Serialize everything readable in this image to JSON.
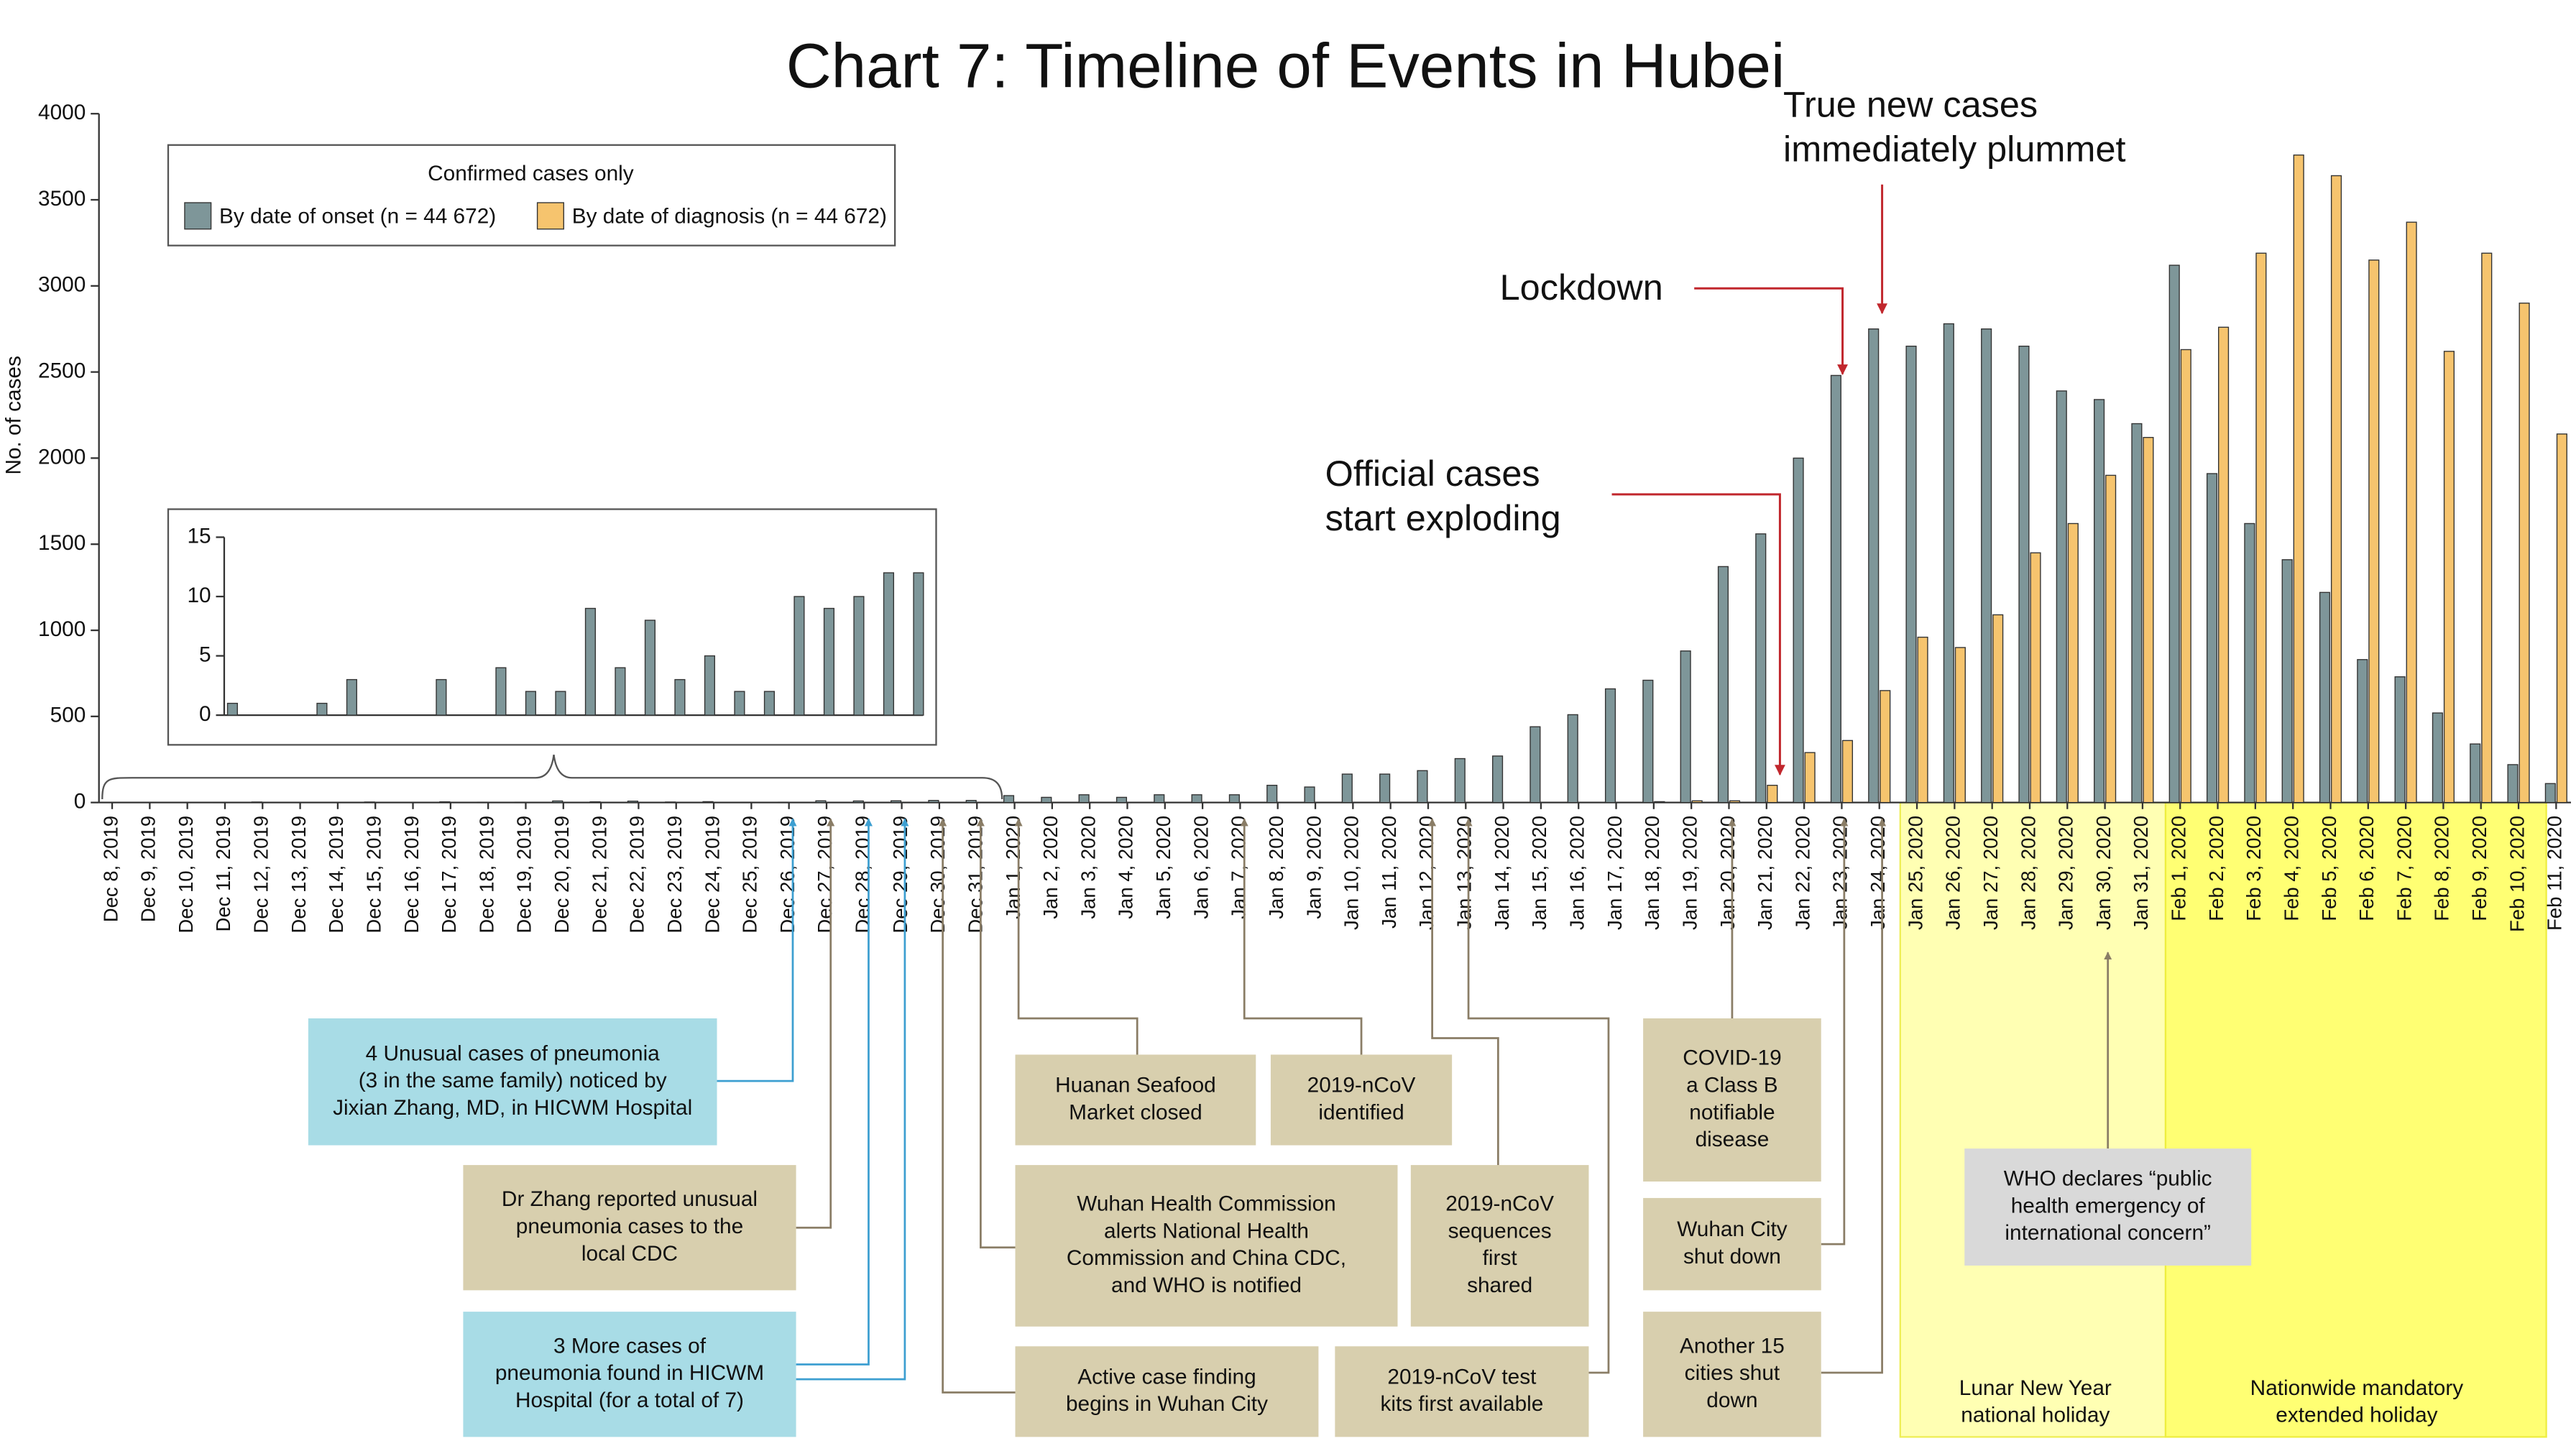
{
  "chart_data": [
    {
      "type": "bar",
      "title": "Chart 7: Timeline of Events in Hubei",
      "y_label": "No. of cases",
      "legend_title": "Confirmed cases only",
      "categories": [
        "Dec 8, 2019",
        "Dec 9, 2019",
        "Dec 10, 2019",
        "Dec 11, 2019",
        "Dec 12, 2019",
        "Dec 13, 2019",
        "Dec 14, 2019",
        "Dec 15, 2019",
        "Dec 16, 2019",
        "Dec 17, 2019",
        "Dec 18, 2019",
        "Dec 19, 2019",
        "Dec 20, 2019",
        "Dec 21, 2019",
        "Dec 22, 2019",
        "Dec 23, 2019",
        "Dec 24, 2019",
        "Dec 25, 2019",
        "Dec 26, 2019",
        "Dec 27, 2019",
        "Dec 28, 2019",
        "Dec 29, 2019",
        "Dec 30, 2019",
        "Dec 31, 2019",
        "Jan 1, 2020",
        "Jan 2, 2020",
        "Jan 3, 2020",
        "Jan 4, 2020",
        "Jan 5, 2020",
        "Jan 6, 2020",
        "Jan 7, 2020",
        "Jan 8, 2020",
        "Jan 9, 2020",
        "Jan 10, 2020",
        "Jan 11, 2020",
        "Jan 12, 2020",
        "Jan 13, 2020",
        "Jan 14, 2020",
        "Jan 15, 2020",
        "Jan 16, 2020",
        "Jan 17, 2020",
        "Jan 18, 2020",
        "Jan 19, 2020",
        "Jan 20, 2020",
        "Jan 21, 2020",
        "Jan 22, 2020",
        "Jan 23, 2020",
        "Jan 24, 2020",
        "Jan 25, 2020",
        "Jan 26, 2020",
        "Jan 27, 2020",
        "Jan 28, 2020",
        "Jan 29, 2020",
        "Jan 30, 2020",
        "Jan 31, 2020",
        "Feb 1, 2020",
        "Feb 2, 2020",
        "Feb 3, 2020",
        "Feb 4, 2020",
        "Feb 5, 2020",
        "Feb 6, 2020",
        "Feb 7, 2020",
        "Feb 8, 2020",
        "Feb 9, 2020",
        "Feb 10, 2020",
        "Feb 11, 2020"
      ],
      "series": [
        {
          "name": "By date of onset (n = 44 672)",
          "color": "#7e9699",
          "values": [
            1,
            0,
            0,
            1,
            3,
            0,
            0,
            3,
            0,
            4,
            2,
            2,
            9,
            4,
            8,
            3,
            5,
            2,
            2,
            10,
            9,
            10,
            12,
            12,
            40,
            30,
            45,
            30,
            45,
            45,
            45,
            100,
            90,
            165,
            165,
            185,
            255,
            270,
            440,
            510,
            660,
            710,
            880,
            1370,
            1560,
            2000,
            2480,
            2750,
            2650,
            2780,
            2750,
            2650,
            2390,
            2340,
            2200,
            3120,
            1910,
            1620,
            1410,
            1220,
            830,
            730,
            520,
            340,
            220,
            110
          ]
        },
        {
          "name": "By date of diagnosis (n = 44 672)",
          "color": "#f6c46e",
          "values": [
            0,
            0,
            0,
            0,
            0,
            0,
            0,
            0,
            0,
            0,
            0,
            0,
            0,
            0,
            0,
            0,
            0,
            0,
            0,
            0,
            0,
            0,
            0,
            0,
            0,
            0,
            0,
            0,
            0,
            0,
            0,
            0,
            0,
            0,
            0,
            0,
            0,
            0,
            0,
            0,
            0,
            5,
            10,
            10,
            100,
            290,
            360,
            650,
            960,
            900,
            1090,
            1450,
            1620,
            1900,
            2120,
            2630,
            2760,
            3190,
            3760,
            3640,
            3150,
            3370,
            2620,
            3190,
            2900,
            2140
          ]
        }
      ],
      "ylim": [
        0,
        4000
      ],
      "yticks": [
        0,
        500,
        1000,
        1500,
        2000,
        2500,
        3000,
        3500,
        4000
      ],
      "annotations": [
        {
          "lines": [
            "True new cases",
            "immediately plummet"
          ],
          "color": "#c1272d"
        },
        {
          "lines": [
            "Lockdown"
          ],
          "color": "#c1272d"
        },
        {
          "lines": [
            "Official cases",
            "start exploding"
          ],
          "color": "#c1272d"
        }
      ]
    },
    {
      "type": "bar",
      "color": "#7e9699",
      "values": [
        1,
        0,
        0,
        1,
        3,
        0,
        0,
        3,
        0,
        4,
        2,
        2,
        9,
        4,
        8,
        3,
        5,
        2,
        2,
        10,
        9,
        10,
        12,
        12
      ],
      "ylim": [
        0,
        15
      ],
      "yticks": [
        0,
        5,
        10,
        15
      ]
    }
  ],
  "events": [
    {
      "lines": [
        "4 Unusual cases of pneumonia",
        "(3 in the same family) noticed by",
        "Jixian Zhang, MD, in HICWM Hospital"
      ],
      "color": "#a8dce6"
    },
    {
      "lines": [
        "Dr Zhang reported unusual",
        "pneumonia cases to the",
        "local CDC"
      ],
      "color": "#d8cfae"
    },
    {
      "lines": [
        "3 More cases of",
        "pneumonia found in HICWM",
        "Hospital (for a total of 7)"
      ],
      "color": "#a8dce6"
    },
    {
      "lines": [
        "Active case finding",
        "begins in Wuhan City"
      ],
      "color": "#d8cfae"
    },
    {
      "lines": [
        "Wuhan Health Commission",
        "alerts National Health",
        "Commission and China CDC,",
        "and WHO is notified"
      ],
      "color": "#d8cfae"
    },
    {
      "lines": [
        "Huanan Seafood",
        "Market closed"
      ],
      "color": "#d8cfae"
    },
    {
      "lines": [
        "2019-nCoV",
        "identified"
      ],
      "color": "#d8cfae"
    },
    {
      "lines": [
        "2019-nCoV",
        "sequences",
        "first",
        "shared"
      ],
      "color": "#d8cfae"
    },
    {
      "lines": [
        "2019-nCoV test",
        "kits first available"
      ],
      "color": "#d8cfae"
    },
    {
      "lines": [
        "COVID-19",
        "a Class B",
        "notifiable",
        "disease"
      ],
      "color": "#d8cfae"
    },
    {
      "lines": [
        "Wuhan City",
        "shut down"
      ],
      "color": "#d8cfae"
    },
    {
      "lines": [
        "Another 15",
        "cities shut",
        "down"
      ],
      "color": "#d8cfae"
    },
    {
      "lines": [
        "WHO declares “public",
        "health emergency of",
        "international concern”"
      ],
      "color": "#d9d9d9"
    }
  ],
  "holidays": [
    {
      "lines": [
        "Lunar New Year",
        "national holiday"
      ],
      "color": "#ffffb3"
    },
    {
      "lines": [
        "Nationwide mandatory",
        "extended holiday"
      ],
      "color": "#ffff73"
    }
  ]
}
